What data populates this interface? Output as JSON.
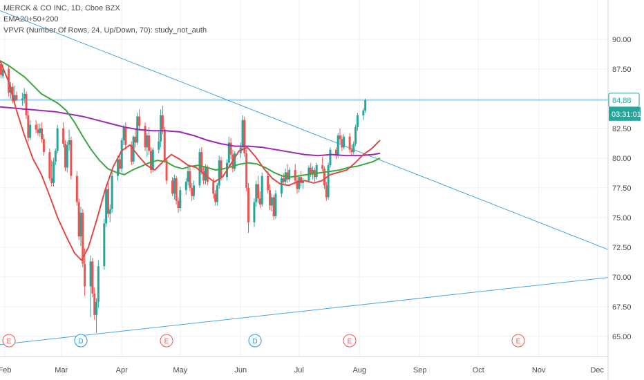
{
  "legend": {
    "symbol": "MERCK & CO INC, 1D, Cboe BZX",
    "ema": "EMA20+50+200",
    "vpvr": "VPVR (Number Of Rows, 24, Up/Down, 70): study_not_auth"
  },
  "colors": {
    "up": "#26a69a",
    "down": "#ef5350",
    "ema20": "#e04848",
    "ema50": "#3aa63e",
    "ema200": "#9c27b0",
    "trendline": "#4aa3df",
    "grid": "#eef0f3",
    "text": "#4a4a4a",
    "price_label_bg": "#26a69a"
  },
  "chart_data": {
    "type": "candlestick",
    "title": "MERCK & CO INC, 1D, Cboe BZX",
    "ylim": [
      63.3,
      93.3
    ],
    "y_ticks": [
      "90.00",
      "87.50",
      "85.00",
      "82.50",
      "80.00",
      "77.50",
      "75.00",
      "72.50",
      "70.00",
      "67.50",
      "65.00"
    ],
    "x_months": [
      "Feb",
      "Mar",
      "Apr",
      "May",
      "Jun",
      "Jul",
      "Aug",
      "Sep",
      "Oct",
      "Nov",
      "Dec"
    ],
    "last_price": "84.88",
    "countdown": "03:31:01",
    "candles_start": "2020-01-30",
    "candles": [
      [
        87.9,
        88.2,
        86.7,
        87.0
      ],
      [
        86.9,
        87.9,
        86.7,
        87.5
      ],
      [
        87.5,
        87.8,
        85.2,
        85.5
      ],
      [
        85.5,
        86.4,
        85.0,
        86.0
      ],
      [
        86.0,
        86.3,
        84.6,
        84.8
      ],
      [
        84.8,
        86.1,
        84.7,
        85.3
      ],
      [
        85.3,
        85.6,
        84.8,
        84.9
      ],
      [
        84.9,
        85.5,
        84.4,
        85.0
      ],
      [
        85.0,
        85.9,
        84.6,
        85.4
      ],
      [
        85.4,
        85.6,
        83.3,
        83.6
      ],
      [
        83.6,
        84.0,
        81.4,
        81.7
      ],
      [
        81.7,
        83.2,
        81.5,
        82.8
      ],
      [
        82.8,
        83.2,
        82.1,
        82.4
      ],
      [
        82.4,
        82.9,
        81.9,
        82.1
      ],
      [
        82.1,
        82.9,
        81.8,
        82.5
      ],
      [
        82.5,
        83.0,
        81.3,
        81.6
      ],
      [
        81.6,
        82.0,
        80.2,
        80.5
      ],
      [
        80.5,
        80.8,
        78.1,
        78.3
      ],
      [
        78.3,
        79.8,
        77.6,
        77.9
      ],
      [
        77.9,
        80.0,
        77.6,
        79.7
      ],
      [
        79.7,
        80.8,
        79.4,
        80.6
      ],
      [
        80.6,
        82.8,
        80.4,
        82.5
      ],
      [
        82.5,
        83.0,
        80.9,
        81.2
      ],
      [
        81.2,
        81.5,
        78.9,
        79.2
      ],
      [
        79.2,
        81.4,
        78.8,
        81.1
      ],
      [
        81.1,
        82.4,
        80.6,
        81.5
      ],
      [
        81.5,
        81.8,
        78.2,
        78.5
      ],
      [
        78.5,
        78.9,
        76.0,
        76.3
      ],
      [
        76.3,
        76.6,
        73.1,
        73.4
      ],
      [
        73.4,
        75.9,
        72.6,
        75.4
      ],
      [
        75.4,
        75.7,
        70.8,
        71.1
      ],
      [
        71.1,
        72.4,
        68.4,
        69.2
      ],
      [
        69.2,
        71.8,
        66.6,
        71.3
      ],
      [
        71.3,
        71.6,
        68.3,
        68.6
      ],
      [
        68.6,
        69.1,
        66.4,
        66.8
      ],
      [
        66.8,
        68.2,
        65.3,
        67.9
      ],
      [
        67.9,
        71.4,
        67.4,
        70.9
      ],
      [
        70.9,
        74.9,
        70.6,
        74.5
      ],
      [
        74.5,
        77.8,
        74.2,
        77.4
      ],
      [
        77.4,
        77.9,
        75.0,
        75.3
      ],
      [
        75.3,
        76.1,
        74.6,
        75.7
      ],
      [
        75.7,
        78.9,
        75.4,
        78.5
      ],
      [
        78.5,
        80.2,
        78.1,
        79.9
      ],
      [
        79.9,
        80.3,
        78.7,
        79.1
      ],
      [
        79.1,
        81.7,
        78.8,
        81.5
      ],
      [
        81.5,
        82.8,
        81.1,
        82.6
      ],
      [
        82.6,
        83.0,
        80.7,
        81.1
      ],
      [
        81.1,
        81.4,
        79.4,
        79.7
      ],
      [
        79.7,
        81.9,
        79.5,
        81.8
      ],
      [
        81.8,
        82.4,
        80.9,
        81.3
      ],
      [
        81.3,
        83.8,
        81.1,
        83.5
      ],
      [
        83.5,
        84.1,
        82.3,
        82.7
      ],
      [
        82.7,
        83.0,
        80.6,
        80.9
      ],
      [
        80.9,
        82.1,
        80.1,
        81.9
      ],
      [
        81.9,
        82.6,
        80.3,
        80.6
      ],
      [
        80.6,
        80.9,
        78.7,
        79.0
      ],
      [
        79.0,
        80.9,
        78.8,
        80.7
      ],
      [
        80.7,
        82.2,
        80.4,
        81.4
      ],
      [
        81.4,
        84.1,
        80.9,
        83.6
      ],
      [
        83.6,
        84.4,
        82.0,
        82.4
      ],
      [
        82.4,
        82.6,
        79.6,
        79.8
      ],
      [
        79.8,
        80.0,
        77.8,
        78.1
      ],
      [
        78.1,
        78.4,
        76.8,
        77.0
      ],
      [
        77.0,
        78.6,
        76.5,
        78.3
      ],
      [
        78.3,
        78.5,
        76.1,
        76.4
      ],
      [
        76.4,
        76.7,
        75.4,
        75.8
      ],
      [
        75.8,
        77.6,
        75.5,
        77.3
      ],
      [
        77.3,
        78.3,
        76.9,
        78.0
      ],
      [
        78.0,
        79.2,
        77.7,
        78.9
      ],
      [
        78.9,
        79.2,
        77.2,
        77.5
      ],
      [
        77.5,
        77.9,
        76.4,
        76.8
      ],
      [
        76.8,
        78.1,
        76.5,
        77.7
      ],
      [
        77.7,
        80.8,
        77.5,
        80.5
      ],
      [
        80.5,
        80.9,
        78.6,
        78.9
      ],
      [
        78.9,
        79.3,
        77.8,
        78.1
      ],
      [
        78.1,
        79.5,
        77.8,
        79.2
      ],
      [
        79.2,
        79.4,
        77.7,
        78.0
      ],
      [
        78.0,
        78.3,
        76.6,
        77.0
      ],
      [
        77.0,
        77.3,
        76.0,
        76.3
      ],
      [
        76.3,
        77.9,
        76.0,
        77.7
      ],
      [
        77.7,
        80.2,
        77.4,
        79.8
      ],
      [
        79.8,
        80.1,
        78.1,
        78.4
      ],
      [
        78.4,
        79.9,
        78.1,
        79.6
      ],
      [
        79.6,
        81.8,
        79.3,
        81.3
      ],
      [
        81.3,
        81.7,
        79.9,
        80.3
      ],
      [
        80.3,
        80.7,
        78.8,
        79.1
      ],
      [
        79.1,
        80.6,
        78.9,
        80.4
      ],
      [
        80.4,
        81.3,
        80.0,
        80.9
      ],
      [
        80.9,
        83.6,
        80.6,
        83.2
      ],
      [
        83.2,
        83.5,
        80.1,
        80.4
      ],
      [
        80.4,
        80.7,
        77.2,
        77.5
      ],
      [
        77.5,
        77.9,
        73.7,
        74.6
      ],
      [
        74.6,
        76.6,
        74.2,
        76.3
      ],
      [
        76.3,
        78.1,
        75.9,
        77.8
      ],
      [
        77.8,
        78.5,
        76.2,
        76.6
      ],
      [
        76.6,
        77.2,
        75.8,
        76.1
      ],
      [
        76.1,
        78.8,
        75.9,
        78.5
      ],
      [
        78.5,
        78.9,
        77.0,
        77.3
      ],
      [
        77.3,
        77.8,
        75.6,
        76.0
      ],
      [
        76.0,
        77.0,
        75.5,
        76.7
      ],
      [
        76.7,
        76.9,
        74.8,
        75.1
      ],
      [
        75.1,
        77.3,
        74.9,
        77.0
      ],
      [
        77.0,
        78.6,
        76.7,
        78.3
      ],
      [
        78.3,
        78.7,
        77.7,
        78.0
      ],
      [
        78.0,
        79.1,
        77.8,
        78.8
      ],
      [
        78.8,
        79.5,
        77.9,
        78.2
      ],
      [
        78.2,
        79.2,
        78.0,
        79.0
      ],
      [
        79.0,
        79.5,
        77.8,
        78.1
      ],
      [
        78.1,
        78.4,
        77.0,
        77.4
      ],
      [
        77.4,
        78.6,
        77.1,
        78.4
      ],
      [
        78.4,
        78.9,
        77.6,
        77.9
      ],
      [
        77.9,
        78.3,
        77.4,
        78.1
      ],
      [
        78.1,
        79.4,
        77.9,
        79.2
      ],
      [
        79.2,
        79.6,
        78.4,
        78.7
      ],
      [
        78.7,
        79.3,
        78.2,
        79.0
      ],
      [
        79.0,
        79.2,
        78.0,
        78.4
      ],
      [
        78.4,
        79.6,
        78.2,
        79.4
      ],
      [
        79.4,
        80.1,
        78.9,
        79.1
      ],
      [
        79.1,
        79.3,
        77.4,
        77.7
      ],
      [
        77.7,
        78.0,
        76.4,
        76.7
      ],
      [
        76.7,
        79.6,
        76.5,
        79.4
      ],
      [
        79.4,
        80.9,
        79.2,
        80.7
      ],
      [
        80.7,
        80.9,
        79.9,
        80.2
      ],
      [
        80.2,
        82.1,
        80.0,
        81.9
      ],
      [
        81.9,
        82.5,
        81.2,
        81.6
      ],
      [
        81.6,
        81.9,
        80.6,
        80.9
      ],
      [
        80.9,
        82.0,
        80.7,
        81.8
      ],
      [
        81.8,
        82.1,
        80.4,
        80.7
      ],
      [
        80.7,
        81.1,
        80.2,
        80.5
      ],
      [
        80.5,
        81.4,
        80.3,
        81.2
      ],
      [
        81.2,
        82.8,
        81.0,
        82.6
      ],
      [
        82.6,
        83.8,
        82.3,
        83.6
      ],
      [
        83.6,
        84.2,
        83.2,
        84.0
      ],
      [
        84.0,
        85.0,
        83.8,
        84.88
      ]
    ],
    "ema20_points": [
      [
        0,
        88.2
      ],
      [
        12,
        86.5
      ],
      [
        24,
        84.0
      ],
      [
        36,
        81.8
      ],
      [
        48,
        79.9
      ],
      [
        60,
        78.6
      ],
      [
        72,
        76.8
      ],
      [
        84,
        74.9
      ],
      [
        96,
        73.4
      ],
      [
        108,
        72.0
      ],
      [
        118,
        71.4
      ],
      [
        128,
        72.5
      ],
      [
        140,
        74.8
      ],
      [
        152,
        77.3
      ],
      [
        164,
        79.3
      ],
      [
        176,
        80.6
      ],
      [
        188,
        81.1
      ],
      [
        200,
        80.2
      ],
      [
        212,
        79.4
      ],
      [
        224,
        79.0
      ],
      [
        236,
        79.7
      ],
      [
        248,
        80.3
      ],
      [
        260,
        79.9
      ],
      [
        272,
        79.4
      ],
      [
        284,
        79.2
      ],
      [
        296,
        78.6
      ],
      [
        310,
        78.0
      ],
      [
        322,
        78.4
      ],
      [
        334,
        79.5
      ],
      [
        346,
        80.6
      ],
      [
        358,
        80.9
      ],
      [
        370,
        80.1
      ],
      [
        382,
        79.1
      ],
      [
        394,
        78.3
      ],
      [
        406,
        77.8
      ],
      [
        418,
        77.7
      ],
      [
        430,
        78.0
      ],
      [
        442,
        78.1
      ],
      [
        454,
        77.9
      ],
      [
        466,
        78.1
      ],
      [
        478,
        78.6
      ],
      [
        490,
        78.8
      ],
      [
        502,
        79.0
      ],
      [
        514,
        79.6
      ],
      [
        526,
        80.3
      ],
      [
        538,
        80.8
      ],
      [
        550,
        81.5
      ]
    ],
    "ema50_points": [
      [
        0,
        88.2
      ],
      [
        12,
        87.8
      ],
      [
        24,
        87.3
      ],
      [
        36,
        86.8
      ],
      [
        48,
        86.1
      ],
      [
        60,
        85.4
      ],
      [
        72,
        85.0
      ],
      [
        84,
        84.6
      ],
      [
        96,
        84.0
      ],
      [
        108,
        83.0
      ],
      [
        120,
        81.8
      ],
      [
        132,
        80.7
      ],
      [
        144,
        79.8
      ],
      [
        156,
        79.1
      ],
      [
        168,
        78.8
      ],
      [
        180,
        78.6
      ],
      [
        192,
        79.0
      ],
      [
        204,
        79.3
      ],
      [
        216,
        79.6
      ],
      [
        228,
        79.8
      ],
      [
        240,
        79.7
      ],
      [
        252,
        79.3
      ],
      [
        264,
        79.1
      ],
      [
        276,
        79.3
      ],
      [
        288,
        79.4
      ],
      [
        300,
        79.2
      ],
      [
        312,
        79.0
      ],
      [
        324,
        79.1
      ],
      [
        336,
        79.3
      ],
      [
        348,
        79.5
      ],
      [
        360,
        79.6
      ],
      [
        372,
        79.5
      ],
      [
        384,
        79.2
      ],
      [
        396,
        78.8
      ],
      [
        408,
        78.5
      ],
      [
        420,
        78.4
      ],
      [
        432,
        78.5
      ],
      [
        444,
        78.6
      ],
      [
        456,
        78.7
      ],
      [
        468,
        78.8
      ],
      [
        480,
        78.9
      ],
      [
        492,
        79.0
      ],
      [
        504,
        79.2
      ],
      [
        516,
        79.3
      ],
      [
        528,
        79.5
      ],
      [
        540,
        79.7
      ],
      [
        550,
        80.0
      ]
    ],
    "ema200_points": [
      [
        0,
        84.3
      ],
      [
        20,
        84.2
      ],
      [
        40,
        84.1
      ],
      [
        60,
        84.0
      ],
      [
        80,
        83.9
      ],
      [
        100,
        83.7
      ],
      [
        120,
        83.5
      ],
      [
        140,
        83.2
      ],
      [
        160,
        82.9
      ],
      [
        180,
        82.6
      ],
      [
        200,
        82.4
      ],
      [
        220,
        82.3
      ],
      [
        240,
        82.3
      ],
      [
        260,
        82.2
      ],
      [
        280,
        81.9
      ],
      [
        300,
        81.5
      ],
      [
        320,
        81.2
      ],
      [
        340,
        81.0
      ],
      [
        360,
        81.0
      ],
      [
        380,
        80.9
      ],
      [
        400,
        80.7
      ],
      [
        420,
        80.5
      ],
      [
        440,
        80.3
      ],
      [
        460,
        80.2
      ],
      [
        480,
        80.3
      ],
      [
        500,
        80.2
      ],
      [
        520,
        80.2
      ],
      [
        540,
        80.3
      ],
      [
        550,
        80.4
      ]
    ],
    "events": [
      {
        "label": "E",
        "type": "earnings"
      },
      {
        "label": "D",
        "type": "dividend"
      },
      {
        "label": "E",
        "type": "earnings"
      },
      {
        "label": "D",
        "type": "dividend"
      },
      {
        "label": "E",
        "type": "earnings"
      },
      {
        "label": "E",
        "type": "earnings"
      }
    ]
  }
}
